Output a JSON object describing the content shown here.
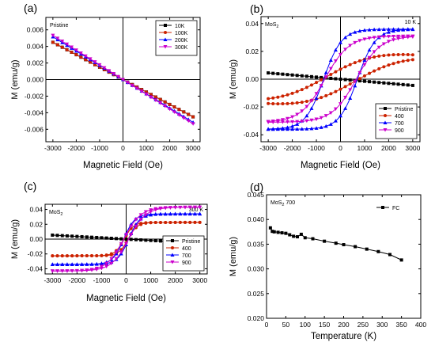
{
  "chart_data": [
    {
      "panel": "(a)",
      "type": "line",
      "note": "Pristine",
      "xlabel": "Magnetic Field (Oe)",
      "ylabel": "M (emu/g)",
      "xlim": [
        -3300,
        3300
      ],
      "ylim": [
        -0.0075,
        0.0075
      ],
      "xticks": [
        -3000,
        -2000,
        -1000,
        0,
        1000,
        2000,
        3000
      ],
      "yticks": [
        -0.006,
        -0.004,
        -0.002,
        0.0,
        0.002,
        0.004,
        0.006
      ],
      "ytick_labels": [
        "-0.006",
        "-0.004",
        "-0.002",
        "0.000",
        "0.002",
        "0.004",
        "0.006"
      ],
      "zero_lines": true,
      "legend_position": "top-right",
      "series": [
        {
          "name": "10K",
          "color": "#000000",
          "marker": "square",
          "kind": "linear",
          "slope": -1.5e-06
        },
        {
          "name": "100K",
          "color": "#cc2200",
          "marker": "circle",
          "kind": "linear",
          "slope": -1.5e-06
        },
        {
          "name": "200K",
          "color": "#0000ff",
          "marker": "triangle",
          "kind": "linear",
          "slope": -1.72e-06
        },
        {
          "name": "300K",
          "color": "#cc00cc",
          "marker": "triangle-down",
          "kind": "linear",
          "slope": -1.78e-06
        }
      ]
    },
    {
      "panel": "(b)",
      "type": "line",
      "note": "MoS2",
      "corner_text": "10 K",
      "xlabel": "Magnetic Field (Oe)",
      "ylabel": "M (emu/g)",
      "xlim": [
        -3300,
        3300
      ],
      "ylim": [
        -0.045,
        0.045
      ],
      "xticks": [
        -3000,
        -2000,
        -1000,
        0,
        1000,
        2000,
        3000
      ],
      "yticks": [
        -0.04,
        -0.02,
        0.0,
        0.02,
        0.04
      ],
      "ytick_labels": [
        "-0.04",
        "-0.02",
        "0.00",
        "0.02",
        "0.04"
      ],
      "zero_lines": true,
      "legend_position": "bottom-right",
      "series": [
        {
          "name": "Pristine",
          "color": "#000000",
          "marker": "square",
          "kind": "linear",
          "slope": -1.5e-06
        },
        {
          "name": "400",
          "color": "#cc2200",
          "marker": "circle",
          "kind": "loop",
          "ms": 0.027,
          "hc": 600,
          "w": 2200,
          "lin": -2.5e-06
        },
        {
          "name": "700",
          "color": "#0000ff",
          "marker": "triangle",
          "kind": "loop",
          "ms": 0.036,
          "hc": 700,
          "w": 750,
          "lin": 0
        },
        {
          "name": "900",
          "color": "#cc00cc",
          "marker": "triangle-down",
          "kind": "loop",
          "ms": 0.031,
          "hc": 650,
          "w": 1000,
          "lin": 0
        }
      ]
    },
    {
      "panel": "(c)",
      "type": "line",
      "note": "MoS2",
      "corner_text": "300 K",
      "xlabel": "Magnetic Field (Oe)",
      "ylabel": "M (emu/g)",
      "xlim": [
        -3300,
        3300
      ],
      "ylim": [
        -0.047,
        0.047
      ],
      "xticks": [
        -3000,
        -2000,
        -1000,
        0,
        1000,
        2000,
        3000
      ],
      "yticks": [
        -0.04,
        -0.02,
        0.0,
        0.02,
        0.04
      ],
      "ytick_labels": [
        "-0.04",
        "-0.02",
        "0.00",
        "0.02",
        "0.04"
      ],
      "zero_lines": true,
      "legend_position": "bottom-right",
      "series": [
        {
          "name": "Pristine",
          "color": "#000000",
          "marker": "square",
          "kind": "linear",
          "slope": -1.8e-06
        },
        {
          "name": "400",
          "color": "#cc2200",
          "marker": "circle",
          "kind": "loop",
          "ms": 0.0225,
          "hc": 80,
          "w": 380,
          "lin": 0
        },
        {
          "name": "700",
          "color": "#0000ff",
          "marker": "triangle",
          "kind": "loop",
          "ms": 0.034,
          "hc": 100,
          "w": 450,
          "lin": 0
        },
        {
          "name": "900",
          "color": "#cc00cc",
          "marker": "triangle-down",
          "kind": "loop",
          "ms": 0.043,
          "hc": 100,
          "w": 700,
          "lin": 0
        }
      ]
    },
    {
      "panel": "(d)",
      "type": "line",
      "note": "MoS2 700",
      "xlabel": "Temperature (K)",
      "ylabel": "M (emu/g)",
      "xlim": [
        0,
        400
      ],
      "ylim": [
        0.02,
        0.045
      ],
      "xticks": [
        0,
        50,
        100,
        150,
        200,
        250,
        300,
        350,
        400
      ],
      "yticks": [
        0.02,
        0.025,
        0.03,
        0.035,
        0.04,
        0.045
      ],
      "ytick_labels": [
        "0.020",
        "0.025",
        "0.030",
        "0.035",
        "0.040",
        "0.045"
      ],
      "zero_lines": false,
      "legend_position": "top-right",
      "series": [
        {
          "name": "FC",
          "color": "#000000",
          "marker": "square",
          "kind": "points",
          "x": [
            10,
            15,
            20,
            30,
            40,
            50,
            60,
            70,
            80,
            90,
            100,
            120,
            150,
            180,
            200,
            230,
            260,
            290,
            320,
            350
          ],
          "y": [
            0.0383,
            0.0376,
            0.0375,
            0.0374,
            0.0373,
            0.0372,
            0.0369,
            0.0366,
            0.0365,
            0.037,
            0.0363,
            0.0361,
            0.0356,
            0.0352,
            0.0349,
            0.0345,
            0.034,
            0.0335,
            0.0329,
            0.0318
          ]
        }
      ]
    }
  ]
}
